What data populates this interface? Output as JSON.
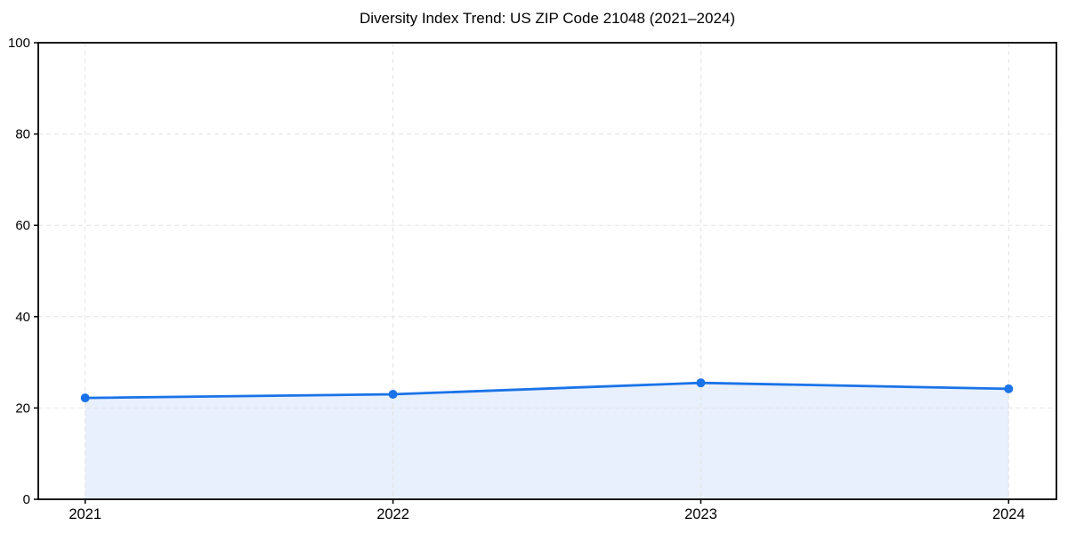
{
  "chart_data": {
    "type": "line",
    "title": "Diversity Index Trend: US ZIP Code 21048 (2021–2024)",
    "categories": [
      "2021",
      "2022",
      "2023",
      "2024"
    ],
    "series": [
      {
        "name": "Diversity Index",
        "values": [
          22.2,
          23.0,
          25.5,
          24.2
        ]
      }
    ],
    "area_fill": true,
    "markers": true,
    "xlabel": "",
    "ylabel": "",
    "ylim": [
      0,
      100
    ],
    "yticks": [
      0,
      20,
      40,
      60,
      80,
      100
    ],
    "grid": true,
    "grid_style": "dashed",
    "legend_position": "none",
    "colors": {
      "line": "#1a73e8",
      "marker": "#1a73e8",
      "area_fill": "#e8effd",
      "grid": "#e3e3e3",
      "spine": "#000000",
      "text": "#000000",
      "background": "#ffffff"
    }
  }
}
